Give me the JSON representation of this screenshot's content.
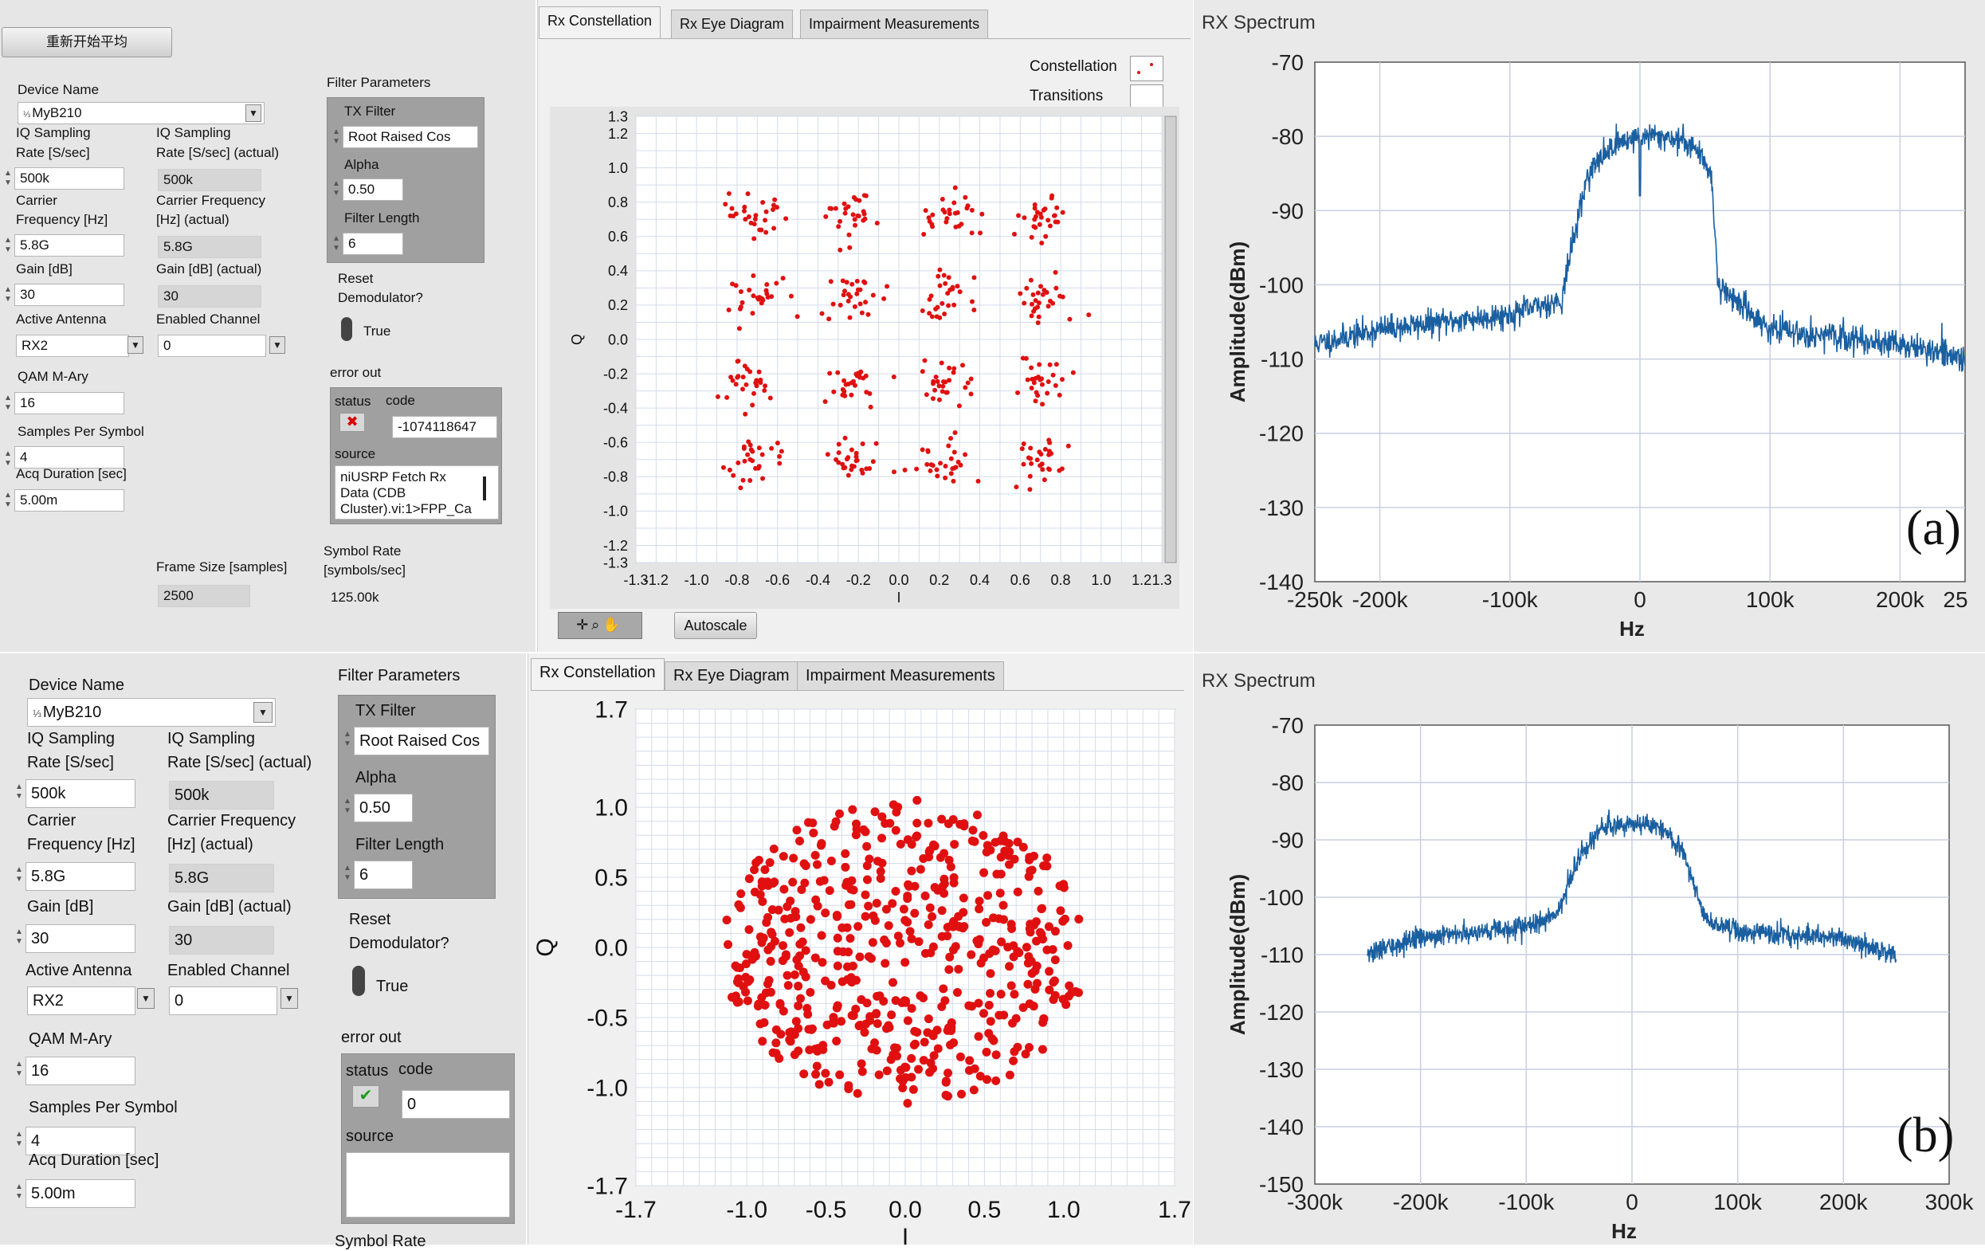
{
  "panel_a": {
    "reset_button_label": "重新开始平均",
    "device_name_label": "Device Name",
    "device_name_value": "MyB210",
    "iq_rate_label_1": "IQ Sampling",
    "iq_rate_label_2": "Rate [S/sec]",
    "iq_rate_value": "500k",
    "iq_rate_actual_label_1": "IQ Sampling",
    "iq_rate_actual_label_2": "Rate [S/sec] (actual)",
    "iq_rate_actual_value": "500k",
    "carrier_label_1": "Carrier",
    "carrier_label_2": "Frequency [Hz]",
    "carrier_value": "5.8G",
    "carrier_actual_label_1": "Carrier Frequency",
    "carrier_actual_label_2": "[Hz] (actual)",
    "carrier_actual_value": "5.8G",
    "gain_label": "Gain [dB]",
    "gain_value": "30",
    "gain_actual_label": "Gain [dB] (actual)",
    "gain_actual_value": "30",
    "antenna_label": "Active Antenna",
    "antenna_value": "RX2",
    "channel_label": "Enabled Channel",
    "channel_value": "0",
    "qam_label": "QAM M-Ary",
    "qam_value": "16",
    "sps_label": "Samples Per Symbol",
    "sps_value": "4",
    "acq_label": "Acq Duration [sec]",
    "acq_value": "5.00m",
    "frame_size_label": "Frame Size [samples]",
    "frame_size_value": "2500",
    "filter_params_label": "Filter Parameters",
    "tx_filter_label": "TX Filter",
    "tx_filter_value": "Root Raised Cos",
    "alpha_label": "Alpha",
    "alpha_value": "0.50",
    "filter_length_label": "Filter Length",
    "filter_length_value": "6",
    "reset_demod_label_1": "Reset",
    "reset_demod_label_2": "Demodulator?",
    "reset_demod_value": "True",
    "error_out_label": "error out",
    "status_label": "status",
    "code_label": "code",
    "code_value": "-1074118647",
    "source_label": "source",
    "source_line_1": "niUSRP Fetch Rx",
    "source_line_2": "Data (CDB",
    "source_line_3": "Cluster).vi:1>FPP_Ca",
    "symbol_rate_label_1": "Symbol Rate",
    "symbol_rate_label_2": "[symbols/sec]",
    "symbol_rate_value": "125.00k",
    "tabs": [
      "Rx Constellation",
      "Rx Eye Diagram",
      "Impairment Measurements"
    ],
    "legend_constellation": "Constellation",
    "legend_transitions": "Transitions",
    "autoscale_label": "Autoscale",
    "spectrum_title": "RX Spectrum",
    "panel_letter": "(a)"
  },
  "panel_b": {
    "device_name_label": "Device Name",
    "device_name_value": "MyB210",
    "iq_rate_label_1": "IQ Sampling",
    "iq_rate_label_2": "Rate [S/sec]",
    "iq_rate_value": "500k",
    "iq_rate_actual_label_1": "IQ Sampling",
    "iq_rate_actual_label_2": "Rate [S/sec] (actual)",
    "iq_rate_actual_value": "500k",
    "carrier_label_1": "Carrier",
    "carrier_label_2": "Frequency [Hz]",
    "carrier_value": "5.8G",
    "carrier_actual_label_1": "Carrier Frequency",
    "carrier_actual_label_2": "[Hz] (actual)",
    "carrier_actual_value": "5.8G",
    "gain_label": "Gain [dB]",
    "gain_value": "30",
    "gain_actual_label": "Gain [dB] (actual)",
    "gain_actual_value": "30",
    "antenna_label": "Active Antenna",
    "antenna_value": "RX2",
    "channel_label": "Enabled Channel",
    "channel_value": "0",
    "qam_label": "QAM M-Ary",
    "qam_value": "16",
    "sps_label": "Samples Per Symbol",
    "sps_value": "4",
    "acq_label": "Acq Duration [sec]",
    "acq_value": "5.00m",
    "filter_params_label": "Filter Parameters",
    "tx_filter_label": "TX Filter",
    "tx_filter_value": "Root Raised Cos",
    "alpha_label": "Alpha",
    "alpha_value": "0.50",
    "filter_length_label": "Filter Length",
    "filter_length_value": "6",
    "reset_demod_label_1": "Reset",
    "reset_demod_label_2": "Demodulator?",
    "reset_demod_value": "True",
    "error_out_label": "error out",
    "status_label": "status",
    "code_label": "code",
    "code_value": "0",
    "source_label": "source",
    "symbol_rate_label": "Symbol Rate",
    "tabs": [
      "Rx Constellation",
      "Rx Eye Diagram",
      "Impairment Measurements"
    ],
    "spectrum_title": "RX Spectrum",
    "panel_letter": "(b)"
  },
  "chart_data": [
    {
      "id": "constellation_a",
      "type": "scatter",
      "xlabel": "I",
      "ylabel": "Q",
      "xlim": [
        -1.3,
        1.3
      ],
      "ylim": [
        -1.3,
        1.3
      ],
      "xticks": [
        "-1.3",
        "-1.2",
        "-1.0",
        "-0.8",
        "-0.6",
        "-0.4",
        "-0.2",
        "0.0",
        "0.2",
        "0.4",
        "0.6",
        "0.8",
        "1.0",
        "1.2",
        "1.3"
      ],
      "yticks": [
        "1.3",
        "1.2",
        "1.0",
        "0.8",
        "0.6",
        "0.4",
        "0.2",
        "0.0",
        "-0.2",
        "-0.4",
        "-0.6",
        "-0.8",
        "-1.0",
        "-1.2",
        "-1.3"
      ],
      "grid": true,
      "cluster_centers_i": [
        -0.72,
        -0.24,
        0.24,
        0.72
      ],
      "cluster_centers_q": [
        0.72,
        0.24,
        -0.24,
        -0.72
      ],
      "cluster_spread": 0.07,
      "points_per_cluster": 28,
      "point_color": "#e01010"
    },
    {
      "id": "spectrum_a",
      "type": "line",
      "title": "RX Spectrum",
      "xlabel": "Hz",
      "ylabel": "Amplitude(dBm)",
      "xlim": [
        -250000,
        250000
      ],
      "ylim": [
        -140,
        -70
      ],
      "xticks": [
        "-250k",
        "-200k",
        "-100k",
        "0",
        "100k",
        "200k",
        "25"
      ],
      "yticks": [
        "-70",
        "-80",
        "-90",
        "-100",
        "-110",
        "-120",
        "-130",
        "-140"
      ],
      "grid": true,
      "x": [
        -250000,
        -200000,
        -150000,
        -100000,
        -60000,
        -55000,
        -40000,
        -20000,
        0,
        20000,
        40000,
        55000,
        60000,
        100000,
        150000,
        200000,
        250000
      ],
      "y": [
        -108,
        -106,
        -105,
        -104,
        -102,
        -97,
        -85,
        -81,
        -80,
        -80,
        -81,
        -85,
        -100,
        -106,
        -107,
        -108,
        -110
      ],
      "notch_at_zero_dbm": -88,
      "line_color": "#1a5fa0"
    },
    {
      "id": "constellation_b",
      "type": "scatter",
      "xlabel": "I",
      "ylabel": "Q",
      "xlim": [
        -1.7,
        1.7
      ],
      "ylim": [
        -1.7,
        1.7
      ],
      "xticks": [
        "-1.7",
        "-1.0",
        "-0.5",
        "0.0",
        "0.5",
        "1.0",
        "1.7"
      ],
      "yticks": [
        "1.7",
        "1.0",
        "0.5",
        "0.0",
        "-0.5",
        "-1.0",
        "-1.7"
      ],
      "grid": true,
      "distribution": "disc",
      "radius": 1.15,
      "point_count": 560,
      "point_color": "#e01010"
    },
    {
      "id": "spectrum_b",
      "type": "line",
      "title": "RX Spectrum",
      "xlabel": "Hz",
      "ylabel": "Amplitude(dBm)",
      "xlim": [
        -300000,
        300000
      ],
      "ylim": [
        -150,
        -70
      ],
      "xticks": [
        "-300k",
        "-200k",
        "-100k",
        "0",
        "100k",
        "200k",
        "300k"
      ],
      "yticks": [
        "-70",
        "-80",
        "-90",
        "-100",
        "-110",
        "-120",
        "-130",
        "-140",
        "-150"
      ],
      "grid": true,
      "x": [
        -250000,
        -200000,
        -100000,
        -70000,
        -50000,
        -30000,
        0,
        30000,
        50000,
        70000,
        100000,
        200000,
        250000
      ],
      "y": [
        -110,
        -107,
        -105,
        -103,
        -93,
        -88,
        -87,
        -88,
        -93,
        -104,
        -106,
        -107,
        -110
      ],
      "line_color": "#1a5fa0"
    }
  ]
}
